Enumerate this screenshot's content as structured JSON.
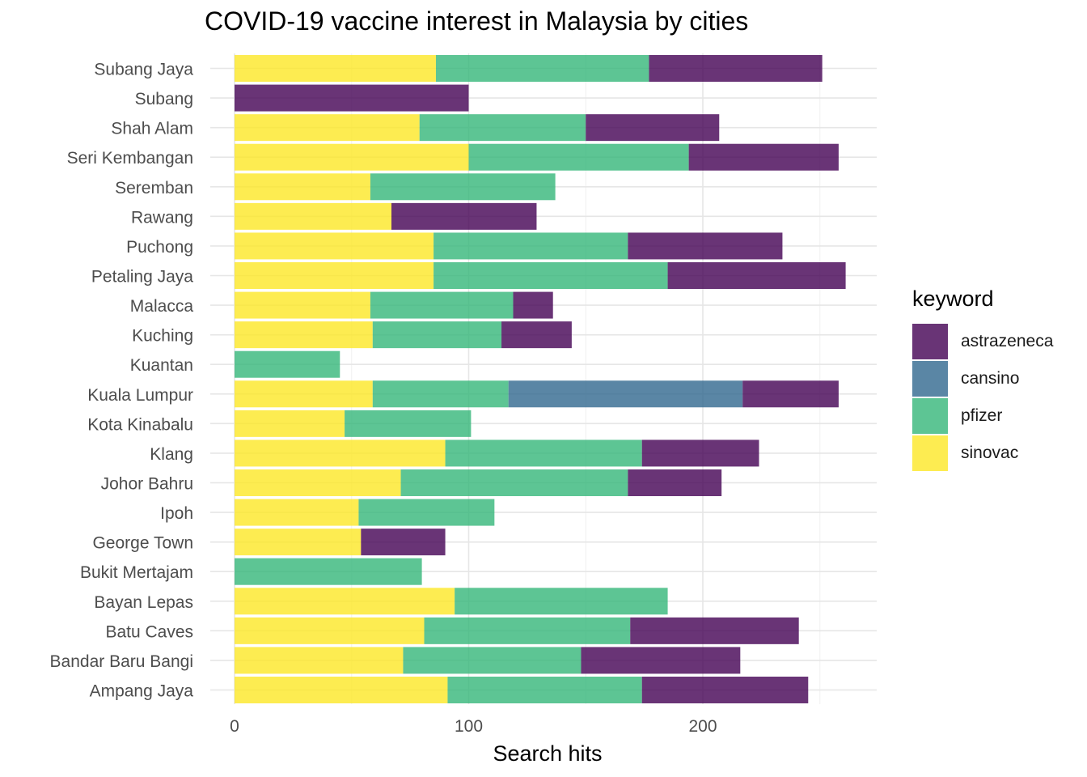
{
  "chart_data": {
    "type": "bar",
    "orientation": "horizontal",
    "stacked": true,
    "title": "COVID-19 vaccine interest in Malaysia by cities",
    "xlabel": "Search hits",
    "ylabel": "",
    "xlim": [
      0,
      275
    ],
    "xticks": [
      0,
      100,
      200
    ],
    "grid": true,
    "legend_title": "keyword",
    "legend_position": "right",
    "categories": [
      "Subang Jaya",
      "Subang",
      "Shah Alam",
      "Seri Kembangan",
      "Seremban",
      "Rawang",
      "Puchong",
      "Petaling Jaya",
      "Malacca",
      "Kuching",
      "Kuantan",
      "Kuala Lumpur",
      "Kota Kinabalu",
      "Klang",
      "Johor Bahru",
      "Ipoh",
      "George Town",
      "Bukit Mertajam",
      "Bayan Lepas",
      "Batu Caves",
      "Bandar Baru Bangi",
      "Ampang Jaya"
    ],
    "stack_order": [
      "sinovac",
      "pfizer",
      "cansino",
      "astrazeneca"
    ],
    "series": [
      {
        "name": "astrazeneca",
        "color": "#440154",
        "values": [
          74,
          100,
          57,
          64,
          0,
          62,
          66,
          76,
          17,
          30,
          0,
          41,
          0,
          50,
          40,
          0,
          36,
          0,
          0,
          72,
          68,
          71
        ]
      },
      {
        "name": "cansino",
        "color": "#31688E",
        "values": [
          0,
          0,
          0,
          0,
          0,
          0,
          0,
          0,
          0,
          0,
          0,
          100,
          0,
          0,
          0,
          0,
          0,
          0,
          0,
          0,
          0,
          0
        ]
      },
      {
        "name": "pfizer",
        "color": "#35B779",
        "values": [
          91,
          0,
          71,
          94,
          79,
          0,
          83,
          100,
          61,
          55,
          45,
          58,
          54,
          84,
          97,
          58,
          0,
          80,
          91,
          88,
          76,
          83
        ]
      },
      {
        "name": "sinovac",
        "color": "#FDE725",
        "values": [
          86,
          0,
          79,
          100,
          58,
          67,
          85,
          85,
          58,
          59,
          0,
          59,
          47,
          90,
          71,
          53,
          54,
          0,
          94,
          81,
          72,
          91
        ]
      }
    ]
  }
}
